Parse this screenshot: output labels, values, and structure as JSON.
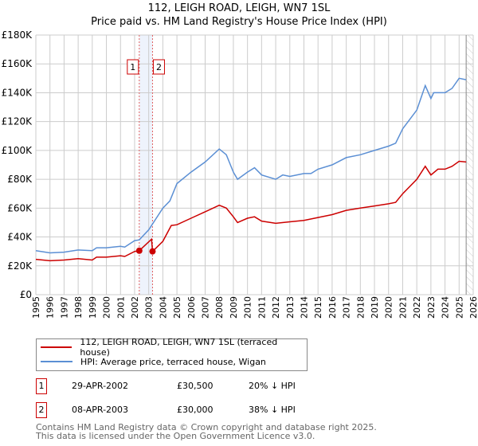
{
  "title_line1": "112, LEIGH ROAD, LEIGH, WN7 1SL",
  "title_line2": "Price paid vs. HM Land Registry's House Price Index (HPI)",
  "chart_data": {
    "type": "line",
    "title": "112, LEIGH ROAD, LEIGH, WN7 1SL — Price paid vs. HM Land Registry's House Price Index (HPI)",
    "xlim": [
      1995,
      2026
    ],
    "ylim": [
      0,
      180000
    ],
    "x_ticks": [
      "1995",
      "1996",
      "1997",
      "1998",
      "1999",
      "2000",
      "2001",
      "2002",
      "2003",
      "2004",
      "2005",
      "2006",
      "2007",
      "2008",
      "2009",
      "2010",
      "2011",
      "2012",
      "2013",
      "2014",
      "2015",
      "2016",
      "2017",
      "2018",
      "2019",
      "2020",
      "2021",
      "2022",
      "2023",
      "2024",
      "2025",
      "2026"
    ],
    "y_ticks": [
      0,
      20000,
      40000,
      60000,
      80000,
      100000,
      120000,
      140000,
      160000,
      180000
    ],
    "y_tick_labels": [
      "£0",
      "£20K",
      "£40K",
      "£60K",
      "£80K",
      "£100K",
      "£120K",
      "£140K",
      "£160K",
      "£180K"
    ],
    "grid": true,
    "shaded_period": [
      2002.33,
      2003.27
    ],
    "projection_start": 2025.5,
    "series": [
      {
        "name": "112, LEIGH ROAD, LEIGH, WN7 1SL (terraced house)",
        "color": "#cc0000",
        "x": [
          1995,
          1996,
          1997,
          1998,
          1999,
          1999.3,
          2000,
          2001,
          2001.3,
          2002,
          2002.33,
          2003.2,
          2003.27,
          2004,
          2004.6,
          2005,
          2006,
          2007,
          2008,
          2008.5,
          2009,
          2009.3,
          2010,
          2010.5,
          2011,
          2012,
          2013,
          2014,
          2015,
          2016,
          2017,
          2018,
          2019,
          2020,
          2020.5,
          2021,
          2022,
          2022.6,
          2023,
          2023.5,
          2024,
          2024.5,
          2025,
          2025.5
        ],
        "y": [
          24500,
          23500,
          24000,
          25000,
          24000,
          26000,
          26000,
          27000,
          26500,
          30000,
          30500,
          38500,
          30000,
          37000,
          48000,
          48500,
          53000,
          57500,
          62000,
          60000,
          54000,
          50000,
          53000,
          54000,
          51000,
          49500,
          50500,
          51500,
          53500,
          55500,
          58500,
          60000,
          61500,
          63000,
          64000,
          70000,
          80000,
          89000,
          83000,
          87000,
          87000,
          89000,
          92500,
          92000
        ]
      },
      {
        "name": "HPI: Average price, terraced house, Wigan",
        "color": "#5b8fd4",
        "x": [
          1995,
          1996,
          1997,
          1998,
          1999,
          1999.3,
          2000,
          2001,
          2001.3,
          2002,
          2002.33,
          2003,
          2004,
          2004.5,
          2005,
          2006,
          2007,
          2008,
          2008.5,
          2009,
          2009.3,
          2010,
          2010.5,
          2011,
          2012,
          2012.5,
          2013,
          2014,
          2014.5,
          2015,
          2016,
          2017,
          2018,
          2019,
          2020,
          2020.5,
          2021,
          2022,
          2022.6,
          2023,
          2023.2,
          2024,
          2024.5,
          2025,
          2025.5
        ],
        "y": [
          30500,
          29000,
          29500,
          31000,
          30500,
          32500,
          32500,
          33500,
          33000,
          37500,
          38000,
          45000,
          60000,
          65000,
          77000,
          85000,
          92000,
          101000,
          97000,
          85000,
          80000,
          85000,
          88000,
          83000,
          80000,
          83000,
          82000,
          84000,
          84000,
          87000,
          90000,
          95000,
          97000,
          100000,
          103000,
          105000,
          115000,
          128000,
          145000,
          136000,
          140000,
          140000,
          143000,
          150000,
          149000
        ]
      }
    ],
    "markers": [
      {
        "label": "1",
        "x": 2002.33,
        "y": 30500
      },
      {
        "label": "2",
        "x": 2003.27,
        "y": 30000
      }
    ]
  },
  "legend": {
    "property": "112, LEIGH ROAD, LEIGH, WN7 1SL (terraced house)",
    "hpi": "HPI: Average price, terraced house, Wigan"
  },
  "sales": [
    {
      "num": "1",
      "date": "29-APR-2002",
      "price": "£30,500",
      "hpi": "20% ↓ HPI"
    },
    {
      "num": "2",
      "date": "08-APR-2003",
      "price": "£30,000",
      "hpi": "38% ↓ HPI"
    }
  ],
  "footer": {
    "line1": "Contains HM Land Registry data © Crown copyright and database right 2025.",
    "line2": "This data is licensed under the Open Government Licence v3.0."
  }
}
